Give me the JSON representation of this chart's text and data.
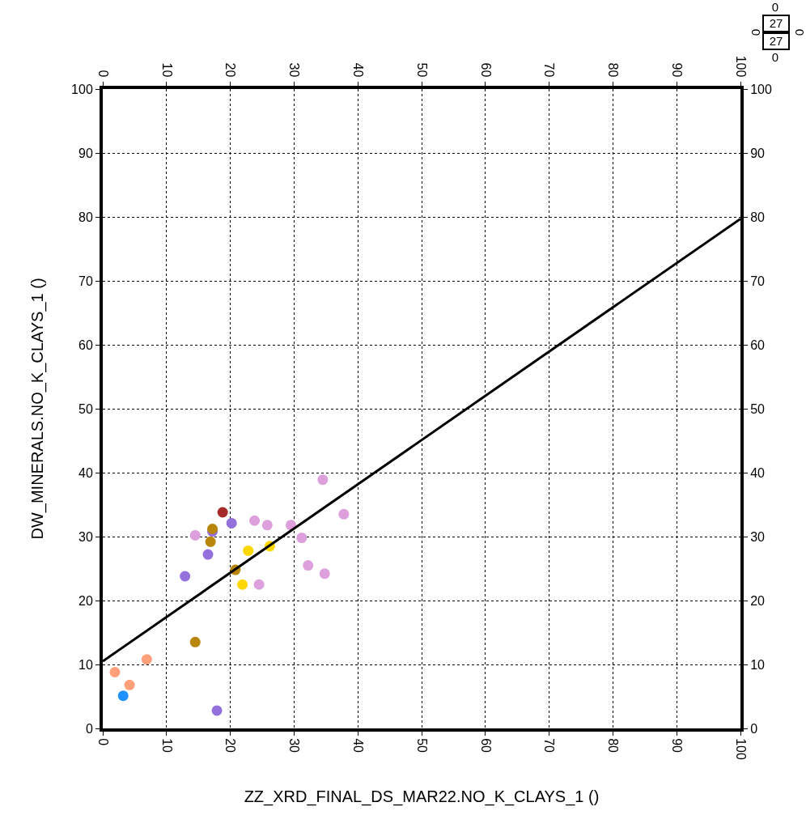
{
  "chart_data": {
    "type": "scatter",
    "xlabel": "ZZ_XRD_FINAL_DS_MAR22.NO_K_CLAYS_1 ()",
    "ylabel": "DW_MINERALS.NO_K_CLAYS_1 ()",
    "xlim": [
      0,
      100
    ],
    "xticks": [
      0,
      10,
      20,
      30,
      40,
      50,
      60,
      70,
      80,
      90,
      100
    ],
    "x2lim": [
      0,
      100
    ],
    "x2ticks": [
      0,
      10,
      20,
      30,
      40,
      50,
      60,
      70,
      80,
      90,
      100
    ],
    "ylim": [
      0,
      100
    ],
    "yticks": [
      0,
      10,
      20,
      30,
      40,
      50,
      60,
      70,
      80,
      90,
      100
    ],
    "y2lim": [
      0,
      100
    ],
    "y2ticks": [
      0,
      10,
      20,
      30,
      40,
      50,
      60,
      70,
      80,
      90,
      100
    ],
    "grid": true,
    "marker": "circle",
    "annotations": [
      "0",
      "27",
      "27",
      "0",
      "0",
      "0"
    ],
    "series": [
      {
        "color": "#dda0dd",
        "x": [
          34.5,
          37.8,
          23.8,
          25.8,
          29.5,
          31.2,
          14.5,
          24.5,
          32.2,
          34.8
        ],
        "values": [
          38.9,
          33.5,
          32.5,
          31.8,
          31.8,
          29.8,
          30.2,
          22.5,
          25.5,
          24.2
        ]
      },
      {
        "color": "#9370db",
        "x": [
          20.2,
          17.2,
          16.5,
          12.9,
          17.9
        ],
        "values": [
          32.1,
          30.8,
          27.2,
          23.8,
          2.8
        ]
      },
      {
        "color": "#b8860b",
        "x": [
          17.2,
          16.9,
          20.8,
          14.5
        ],
        "values": [
          31.2,
          29.2,
          24.8,
          13.5
        ]
      },
      {
        "color": "#ffd700",
        "x": [
          22.8,
          26.2,
          21.9
        ],
        "values": [
          27.8,
          28.5,
          22.5
        ]
      },
      {
        "color": "#ffa07a",
        "x": [
          6.9,
          1.9,
          4.2
        ],
        "values": [
          10.8,
          8.8,
          6.8
        ]
      },
      {
        "color": "#1e90ff",
        "x": [
          3.2
        ],
        "values": [
          5.1
        ]
      },
      {
        "color": "#a52a2a",
        "x": [
          18.8
        ],
        "values": [
          33.8
        ]
      },
      {
        "type": "line",
        "marker": "none",
        "color": "#000000",
        "x": [
          0,
          100
        ],
        "values": [
          10.5,
          79.7
        ]
      }
    ]
  }
}
